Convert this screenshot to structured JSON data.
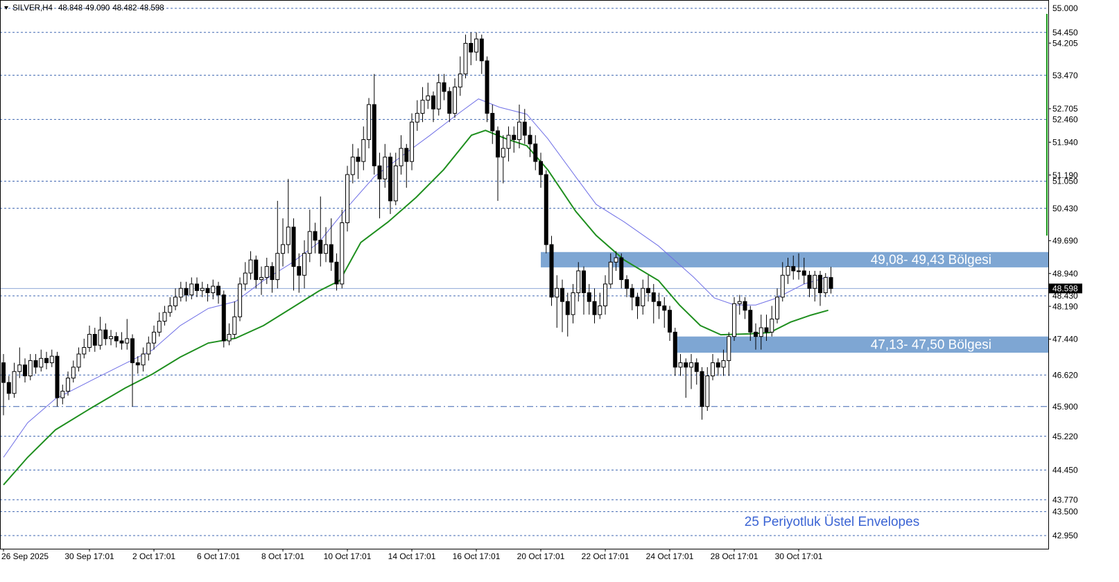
{
  "chart_data": {
    "type": "candlestick",
    "header": {
      "symbol": "SILVER,H4",
      "values": [
        48.848,
        {
          "value": 49.09,
          "label": "49.090"
        },
        48.482,
        48.598
      ]
    },
    "categories": [
      "26 Sep 2025",
      null,
      null,
      null,
      null,
      null,
      null,
      null,
      null,
      null,
      null,
      null,
      null,
      null,
      null,
      null,
      "30 Sep 17:01",
      null,
      null,
      null,
      null,
      null,
      null,
      null,
      null,
      null,
      null,
      null,
      "2 Oct 17:01",
      null,
      null,
      null,
      null,
      null,
      null,
      null,
      null,
      null,
      null,
      null,
      "6 Oct 17:01",
      null,
      null,
      null,
      null,
      null,
      null,
      null,
      null,
      null,
      null,
      null,
      "8 Oct 17:01",
      null,
      null,
      null,
      null,
      null,
      null,
      null,
      null,
      null,
      null,
      null,
      "10 Oct 17:01",
      null,
      null,
      null,
      null,
      null,
      null,
      null,
      null,
      null,
      null,
      null,
      "14 Oct 17:01",
      null,
      null,
      null,
      null,
      null,
      null,
      null,
      null,
      null,
      null,
      null,
      "16 Oct 17:01",
      null,
      null,
      null,
      null,
      null,
      null,
      null,
      null,
      null,
      null,
      null,
      "20 Oct 17:01",
      null,
      null,
      null,
      null,
      null,
      null,
      null,
      null,
      null,
      null,
      null,
      "22 Oct 17:01",
      null,
      null,
      null,
      null,
      null,
      null,
      null,
      null,
      null,
      null,
      null,
      "24 Oct 17:01",
      null,
      null,
      null,
      null,
      null,
      null,
      null,
      null,
      null,
      null,
      null,
      "28 Oct 17:01",
      null,
      null,
      null,
      null,
      null,
      null,
      null,
      null,
      null,
      null,
      null,
      "30 Oct 17:01",
      null,
      null,
      null,
      null,
      null,
      null
    ],
    "open": [
      46.9,
      46.45,
      46.2,
      46.7,
      46.85,
      46.6,
      46.95,
      46.8,
      47,
      46.9,
      47.05,
      46.1,
      46.25,
      46.55,
      46.8,
      47.1,
      47.25,
      47.55,
      47.3,
      47.65,
      47.45,
      47.5,
      47.4,
      47.35,
      47.45,
      46.9,
      46.85,
      47.1,
      47.35,
      47.6,
      47.85,
      48.05,
      48.2,
      48.4,
      48.6,
      48.45,
      48.7,
      48.55,
      48.6,
      48.5,
      48.65,
      48.45,
      47.4,
      47.55,
      47.95,
      48.7,
      48.95,
      49.25,
      48.8,
      48.85,
      49.1,
      48.8,
      49.4,
      49.6,
      50,
      49.1,
      48.9,
      49.4,
      49.9,
      49.7,
      49.4,
      49.6,
      49.2,
      48.7,
      50.1,
      51.2,
      51.6,
      51.5,
      52,
      52.8,
      51.4,
      51.1,
      51.6,
      50.6,
      51.4,
      51.8,
      51.5,
      52.4,
      52.6,
      52.9,
      53,
      52.7,
      53.3,
      53.1,
      52.6,
      53.2,
      53.5,
      54.2,
      54,
      54.3,
      53.8,
      52.6,
      52.2,
      51.6,
      51.8,
      52.1,
      52,
      52.4,
      52.1,
      51.9,
      51.5,
      51.2,
      49.6,
      48.4,
      48.6,
      48.3,
      48,
      48.5,
      49,
      48.5,
      48.3,
      48,
      48.2,
      48.7,
      49.2,
      49.3,
      48.8,
      48.6,
      48.4,
      48.2,
      48.6,
      48.5,
      48.3,
      48.2,
      48.1,
      47.6,
      46.8,
      46.9,
      46.8,
      46.9,
      46.7,
      45.9,
      46.6,
      46.9,
      46.8,
      46.95,
      47.5,
      48.25,
      48.3,
      48.1,
      47.6,
      47.5,
      47.7,
      47.6,
      47.9,
      48.4,
      48.9,
      49.1,
      49,
      49,
      48.9,
      48.6,
      48.9,
      48.5,
      48.848
    ],
    "high": [
      47.1,
      46.6,
      46.9,
      47.25,
      47,
      47.1,
      47.1,
      47.2,
      47.15,
      47.2,
      47.15,
      46.4,
      46.7,
      46.95,
      47.25,
      47.45,
      47.75,
      47.7,
      47.95,
      47.8,
      47.65,
      47.6,
      47.6,
      47.9,
      47.55,
      47.05,
      47.25,
      47.5,
      47.75,
      48.05,
      48.2,
      48.4,
      48.6,
      48.75,
      48.75,
      48.85,
      48.85,
      48.75,
      48.7,
      48.8,
      48.75,
      48.55,
      47.8,
      48.3,
      48.85,
      49.2,
      49.45,
      49.35,
      49.1,
      49.3,
      49.2,
      50.6,
      50.2,
      51.1,
      50.2,
      49.4,
      49.7,
      50.4,
      50.1,
      50.7,
      50,
      50.2,
      49.4,
      50.4,
      51.4,
      51.9,
      51.8,
      52.3,
      52.95,
      53.5,
      51.7,
      51.9,
      51.7,
      51.7,
      52.1,
      51.9,
      52.6,
      52.9,
      53.2,
      53.3,
      53.1,
      53.5,
      53.5,
      53.2,
      53.4,
      53.9,
      54.4,
      54.45,
      54.45,
      54.4,
      53.9,
      52.8,
      52.3,
      52.1,
      52.3,
      52.3,
      52.8,
      52.7,
      52.3,
      52.1,
      51.7,
      51.3,
      49.8,
      48.9,
      48.8,
      48.5,
      48.7,
      49.2,
      49.1,
      48.7,
      48.6,
      48.5,
      48.9,
      49.4,
      49.45,
      49.4,
      48.9,
      48.7,
      48.5,
      48.8,
      48.9,
      48.7,
      48.5,
      48.4,
      48.2,
      47.7,
      47.1,
      47,
      47.1,
      47,
      46.8,
      46.8,
      47.1,
      47,
      47.2,
      47.6,
      48.4,
      48.45,
      48.4,
      48.2,
      47.8,
      48,
      48,
      48.2,
      48.6,
      49.2,
      49.3,
      49.35,
      49.4,
      49.3,
      49,
      49,
      49,
      48.95,
      49.09
    ],
    "low": [
      45.7,
      46.05,
      46.1,
      46.55,
      46.45,
      46.5,
      46.65,
      46.7,
      46.75,
      46.8,
      45.9,
      45.95,
      46.15,
      46.45,
      46.7,
      47,
      47.15,
      47.15,
      47.2,
      47.3,
      47.3,
      47.25,
      47.2,
      47.2,
      45.9,
      46.65,
      46.7,
      46.95,
      47.2,
      47.5,
      47.75,
      47.95,
      48.1,
      48.3,
      48.3,
      48.35,
      48.4,
      48.4,
      48.3,
      48.35,
      48.25,
      47.25,
      47.3,
      47.45,
      47.85,
      48.55,
      48.8,
      48.6,
      48.45,
      48.7,
      48.5,
      48.6,
      49.1,
      49.4,
      48.55,
      48.5,
      48.6,
      49.2,
      49.4,
      49.1,
      49.2,
      49,
      48.55,
      48.6,
      49.9,
      51,
      51.1,
      51.3,
      51.8,
      51.2,
      50.2,
      50.9,
      50.3,
      50.5,
      51.2,
      50.9,
      51.3,
      52.2,
      52.4,
      52.7,
      52.4,
      52.55,
      52.9,
      52.4,
      52.5,
      53,
      53.4,
      53.7,
      53.8,
      53.5,
      52.4,
      51.9,
      50.6,
      51,
      51.5,
      51.7,
      51.8,
      51.9,
      51.6,
      51.3,
      50.9,
      49.4,
      48.2,
      47.7,
      47.6,
      47.5,
      47.8,
      48.3,
      48,
      48,
      47.8,
      47.9,
      48,
      48.6,
      49,
      48.6,
      48.4,
      48.1,
      47.9,
      48,
      48.3,
      47.8,
      47.9,
      47.7,
      47.4,
      46.6,
      46.6,
      46.1,
      46.3,
      46.4,
      45.6,
      45.8,
      46.5,
      46.6,
      46.6,
      46.6,
      47.4,
      48,
      47.9,
      47.4,
      47.2,
      47.2,
      47.4,
      47.5,
      47.8,
      48.3,
      48.7,
      48.8,
      48.8,
      48.7,
      48.4,
      48.3,
      48.2,
      48.4,
      48.482
    ],
    "close": [
      46.45,
      46.2,
      46.7,
      46.85,
      46.6,
      46.95,
      46.8,
      47,
      46.9,
      47.05,
      46.1,
      46.25,
      46.55,
      46.8,
      47.1,
      47.25,
      47.55,
      47.3,
      47.65,
      47.45,
      47.5,
      47.4,
      47.35,
      47.45,
      46.9,
      46.85,
      47.1,
      47.35,
      47.6,
      47.85,
      48.05,
      48.2,
      48.4,
      48.6,
      48.45,
      48.7,
      48.55,
      48.6,
      48.5,
      48.65,
      48.45,
      47.4,
      47.55,
      47.95,
      48.7,
      48.95,
      49.25,
      48.8,
      48.85,
      49.1,
      48.8,
      49.4,
      49.6,
      50,
      49.1,
      48.9,
      49.4,
      49.9,
      49.7,
      49.4,
      49.6,
      49.2,
      48.7,
      50.1,
      51.2,
      51.6,
      51.5,
      52,
      52.8,
      51.4,
      51.1,
      51.6,
      50.6,
      51.4,
      51.8,
      51.5,
      52.4,
      52.6,
      52.9,
      53,
      52.7,
      53.3,
      53.1,
      52.6,
      53.2,
      53.5,
      54.2,
      54,
      54.3,
      53.8,
      52.6,
      52.2,
      51.6,
      51.8,
      52.1,
      52,
      52.4,
      52.1,
      51.9,
      51.5,
      51.2,
      49.6,
      48.4,
      48.6,
      48.3,
      48,
      48.5,
      49,
      48.5,
      48.3,
      48,
      48.2,
      48.7,
      49.2,
      49.3,
      48.8,
      48.6,
      48.4,
      48.2,
      48.6,
      48.5,
      48.3,
      48.2,
      48.1,
      47.6,
      46.8,
      46.9,
      46.8,
      46.9,
      46.7,
      45.9,
      46.6,
      46.9,
      46.8,
      46.95,
      47.5,
      48.25,
      48.3,
      48.1,
      47.6,
      47.5,
      47.7,
      47.6,
      47.9,
      48.4,
      48.9,
      49.1,
      49,
      49,
      48.9,
      48.6,
      48.9,
      48.5,
      48.85,
      48.598
    ],
    "bull_color": "#ffffff",
    "bear_color": "#000000",
    "series": [
      {
        "color": "#6f6fe6",
        "width": 1,
        "x": [
          0,
          4.5,
          9.7,
          16.1,
          22.6,
          27.7,
          32.9,
          38.1,
          43.2,
          48.4,
          53.5,
          58.7,
          63.9,
          69,
          74.2,
          79.4,
          84.5,
          88.4,
          92.3,
          97.4,
          101.3,
          106.5,
          110.3,
          115.5,
          121.9,
          128.4,
          132.3,
          136.1,
          140,
          143.9,
          149,
          153.5
        ],
        "values": [
          44.74,
          45.53,
          46.08,
          46.48,
          46.88,
          47.19,
          47.75,
          48.14,
          48.3,
          48.78,
          49.17,
          49.65,
          50.44,
          51.15,
          51.63,
          52.1,
          52.58,
          52.93,
          52.74,
          52.58,
          52.02,
          51.15,
          50.52,
          50.12,
          49.57,
          48.86,
          48.38,
          48.22,
          48.22,
          48.38,
          48.7,
          48.86
        ]
      },
      {
        "color": "#1f8f1f",
        "width": 2,
        "x": [
          0,
          4.5,
          9.7,
          16.1,
          22.6,
          27.7,
          32.9,
          38.1,
          43.2,
          48.4,
          53.5,
          58.7,
          62.6,
          66.5,
          71.6,
          76.8,
          81.9,
          87.1,
          89.7,
          93.5,
          97.4,
          101.3,
          106.5,
          110.3,
          115.5,
          121.9,
          125.8,
          129.7,
          133.5,
          138.7,
          142.6,
          146.5,
          150.3,
          153.5
        ],
        "values": [
          44.11,
          44.74,
          45.37,
          45.85,
          46.32,
          46.64,
          47.03,
          47.35,
          47.46,
          47.75,
          48.14,
          48.54,
          48.78,
          49.65,
          50.12,
          50.68,
          51.31,
          52.1,
          52.21,
          52.02,
          51.86,
          51.31,
          50.36,
          49.81,
          49.25,
          48.78,
          48.22,
          47.75,
          47.54,
          47.56,
          47.59,
          47.83,
          47.99,
          48.1
        ]
      }
    ],
    "xlim": [
      -0.65,
      194.45
    ],
    "ylim": [
      42.65,
      55.19
    ],
    "yticks": [
      54.205,
      52.705,
      {
        "value": 51.94,
        "label": "51.940"
      },
      {
        "value": 51.19,
        "label": "51.190"
      },
      {
        "value": 49.69,
        "label": "49.690"
      },
      {
        "value": 48.94,
        "label": "48.940"
      },
      {
        "value": 48.19,
        "label": "48.190"
      },
      {
        "value": 47.44,
        "label": "47.440"
      }
    ],
    "levels": [
      {
        "value": 55,
        "label": "55.000"
      },
      {
        "value": 54.45,
        "label": "54.450"
      },
      {
        "value": 53.47,
        "label": "53.470"
      },
      {
        "value": 52.46,
        "label": "52.460"
      },
      {
        "value": 51.05,
        "label": "51.050"
      },
      {
        "value": 50.43,
        "label": "50.430"
      },
      {
        "value": 48.43,
        "label": "48.430"
      },
      {
        "value": 46.62,
        "label": "46.620"
      },
      {
        "value": 45.9,
        "label": "45.900",
        "style": "dash-dot"
      },
      {
        "value": 45.22,
        "label": "45.220"
      },
      {
        "value": 44.45,
        "label": "44.450"
      },
      {
        "value": 43.77,
        "label": "43.770"
      },
      {
        "value": 43.5,
        "label": "43.500"
      },
      {
        "value": 42.95,
        "label": "42.950"
      }
    ],
    "level_color": "#3d64b0",
    "last_price": 48.598,
    "zones": [
      {
        "label": "49,08- 49,43 Bölgesi",
        "from": 100,
        "low": 49.08,
        "high": 49.43
      },
      {
        "label": "47,13- 47,50 Bölgesi",
        "from": 125.2,
        "low": 47.13,
        "high": 47.5
      }
    ],
    "zone_color": "#7ea6d3",
    "annotation": "25 Periyotluk Üstel Envelopes"
  }
}
